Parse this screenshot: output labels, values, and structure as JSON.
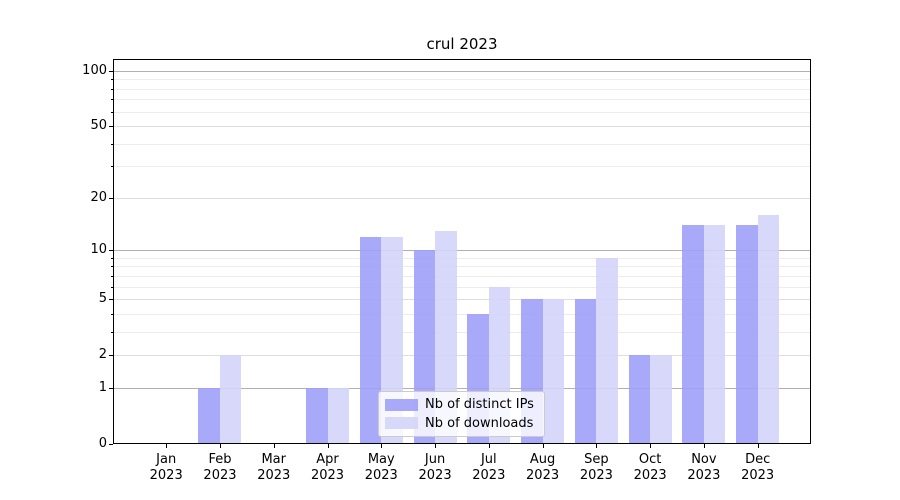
{
  "title": "crul 2023",
  "chart_data": {
    "type": "bar",
    "categories": [
      "Jan",
      "Feb",
      "Mar",
      "Apr",
      "May",
      "Jun",
      "Jul",
      "Aug",
      "Sep",
      "Oct",
      "Nov",
      "Dec"
    ],
    "year": "2023",
    "series": [
      {
        "name": "Nb of distinct IPs",
        "color": "rgba(160,160,249,0.9)",
        "values": [
          0,
          1,
          0,
          1,
          12,
          10,
          4,
          5,
          5,
          2,
          14,
          14
        ]
      },
      {
        "name": "Nb of downloads",
        "color": "rgba(212,212,250,0.9)",
        "values": [
          0,
          2,
          0,
          1,
          12,
          13,
          6,
          5,
          9,
          2,
          14,
          16
        ]
      }
    ],
    "yscale": "log1p",
    "ylim": [
      0,
      115.8
    ],
    "yticks_labeled": [
      0,
      1,
      2,
      5,
      10,
      20,
      50,
      100
    ],
    "gridlines_major": [
      1,
      10,
      100
    ],
    "gridlines_mid": [
      2,
      5,
      20,
      50
    ],
    "gridlines_minor": [
      3,
      4,
      6,
      7,
      8,
      9,
      30,
      40,
      60,
      70,
      80,
      90
    ],
    "grid": "on",
    "legend_position": "lower center",
    "xlabel": "",
    "ylabel": ""
  }
}
